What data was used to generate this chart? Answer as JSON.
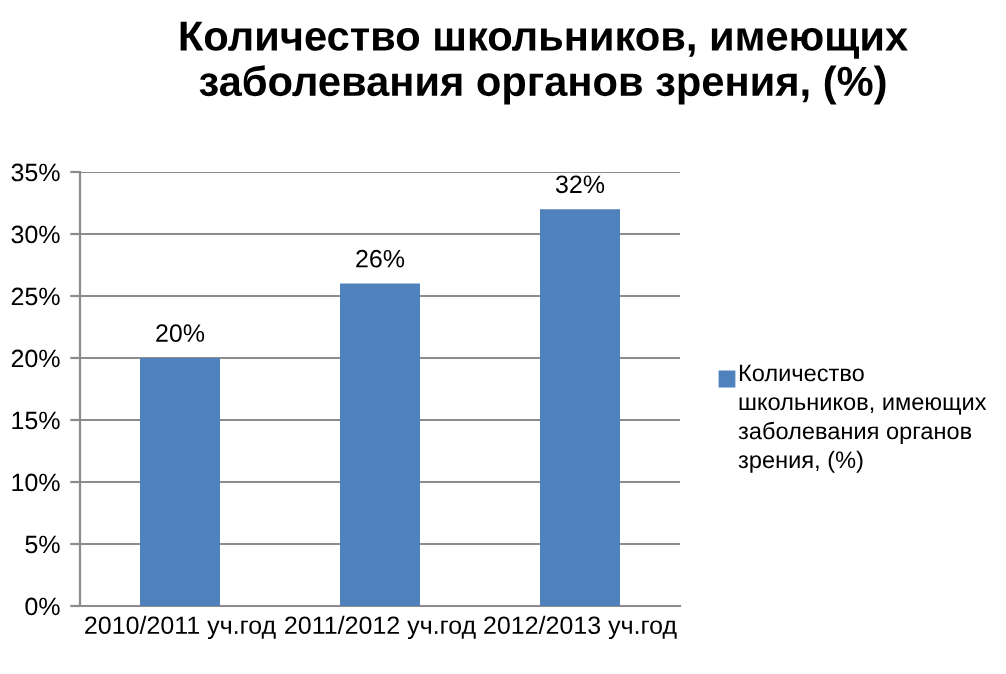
{
  "chart_data": {
    "type": "bar",
    "title": "Количество школьников, имеющих заболевания органов зрения, (%)",
    "categories": [
      "2010/2011 уч.год",
      "2011/2012 уч.год",
      "2012/2013 уч.год"
    ],
    "series": [
      {
        "name": "Количество школьников, имеющих заболевания органов зрения, (%)",
        "color": "#4f81bd",
        "values": [
          20,
          26,
          32
        ],
        "value_labels": [
          "20%",
          "26%",
          "32%"
        ]
      }
    ],
    "ylim": [
      0,
      35
    ],
    "yticks": [
      {
        "value": 0,
        "label": "0%"
      },
      {
        "value": 5,
        "label": "5%"
      },
      {
        "value": 10,
        "label": "10%"
      },
      {
        "value": 15,
        "label": "15%"
      },
      {
        "value": 20,
        "label": "20%"
      },
      {
        "value": 25,
        "label": "25%"
      },
      {
        "value": 30,
        "label": "30%"
      },
      {
        "value": 35,
        "label": "35%"
      }
    ],
    "grid": "y",
    "legend": "right"
  }
}
